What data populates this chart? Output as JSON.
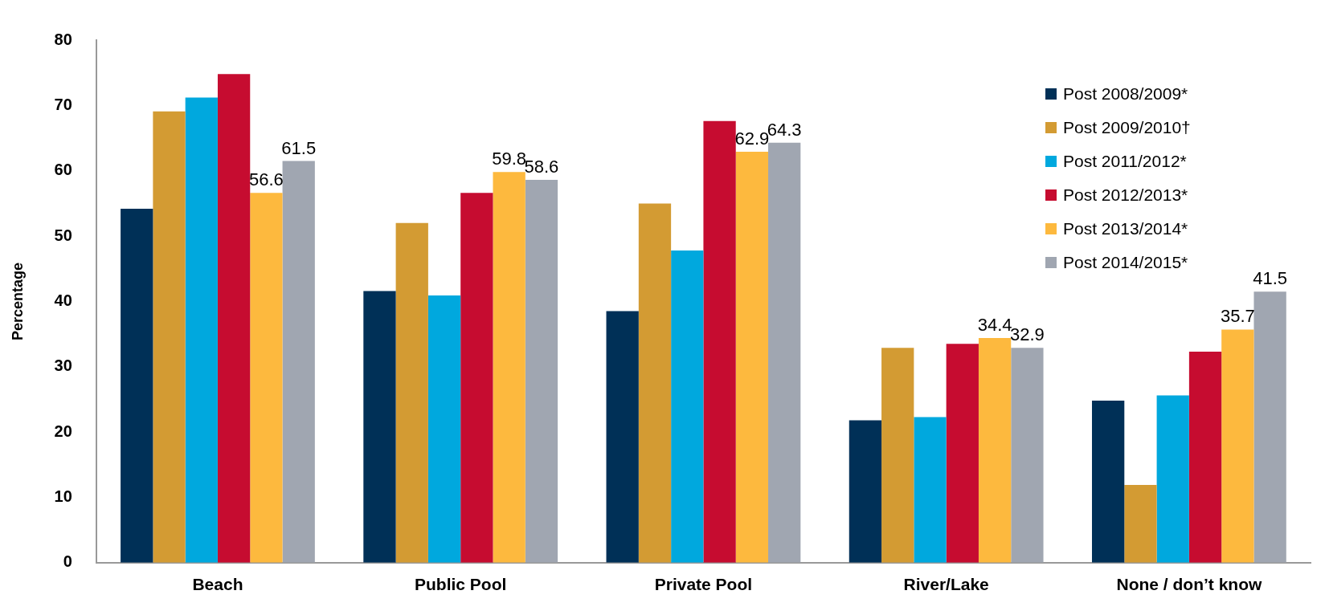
{
  "chart_data": {
    "type": "bar",
    "ylabel": "Percentage",
    "categories": [
      "Beach",
      "Public Pool",
      "Private Pool",
      "River/Lake",
      "None / don’t know"
    ],
    "series": [
      {
        "name": "Post 2008/2009*",
        "color": "#003057",
        "values": [
          54.2,
          41.6,
          38.5,
          21.8,
          24.8
        ]
      },
      {
        "name": "Post 2009/2010†",
        "color": "#d39b33",
        "values": [
          69.1,
          52.0,
          55.0,
          32.9,
          11.9
        ]
      },
      {
        "name": "Post 2011/2012*",
        "color": "#00a8de",
        "values": [
          71.2,
          40.9,
          47.8,
          22.3,
          25.6
        ]
      },
      {
        "name": "Post 2012/2013*",
        "color": "#c60c30",
        "values": [
          74.8,
          56.6,
          67.6,
          33.5,
          32.3
        ]
      },
      {
        "name": "Post 2013/2014*",
        "color": "#fdb93e",
        "values": [
          56.6,
          59.8,
          62.9,
          34.4,
          35.7
        ],
        "value_labels": [
          "56.6",
          "59.8",
          "62.9",
          "34.4",
          "35.7"
        ]
      },
      {
        "name": "Post 2014/2015*",
        "color": "#a0a6b1",
        "values": [
          61.5,
          58.6,
          64.3,
          32.9,
          41.5
        ],
        "value_labels": [
          "61.5",
          "58.6",
          "64.3",
          "32.9",
          "41.5"
        ]
      }
    ],
    "ylim": [
      0,
      80
    ],
    "yticks": [
      0,
      10,
      20,
      30,
      40,
      50,
      60,
      70,
      80
    ],
    "grid": false,
    "legend": "top right"
  }
}
